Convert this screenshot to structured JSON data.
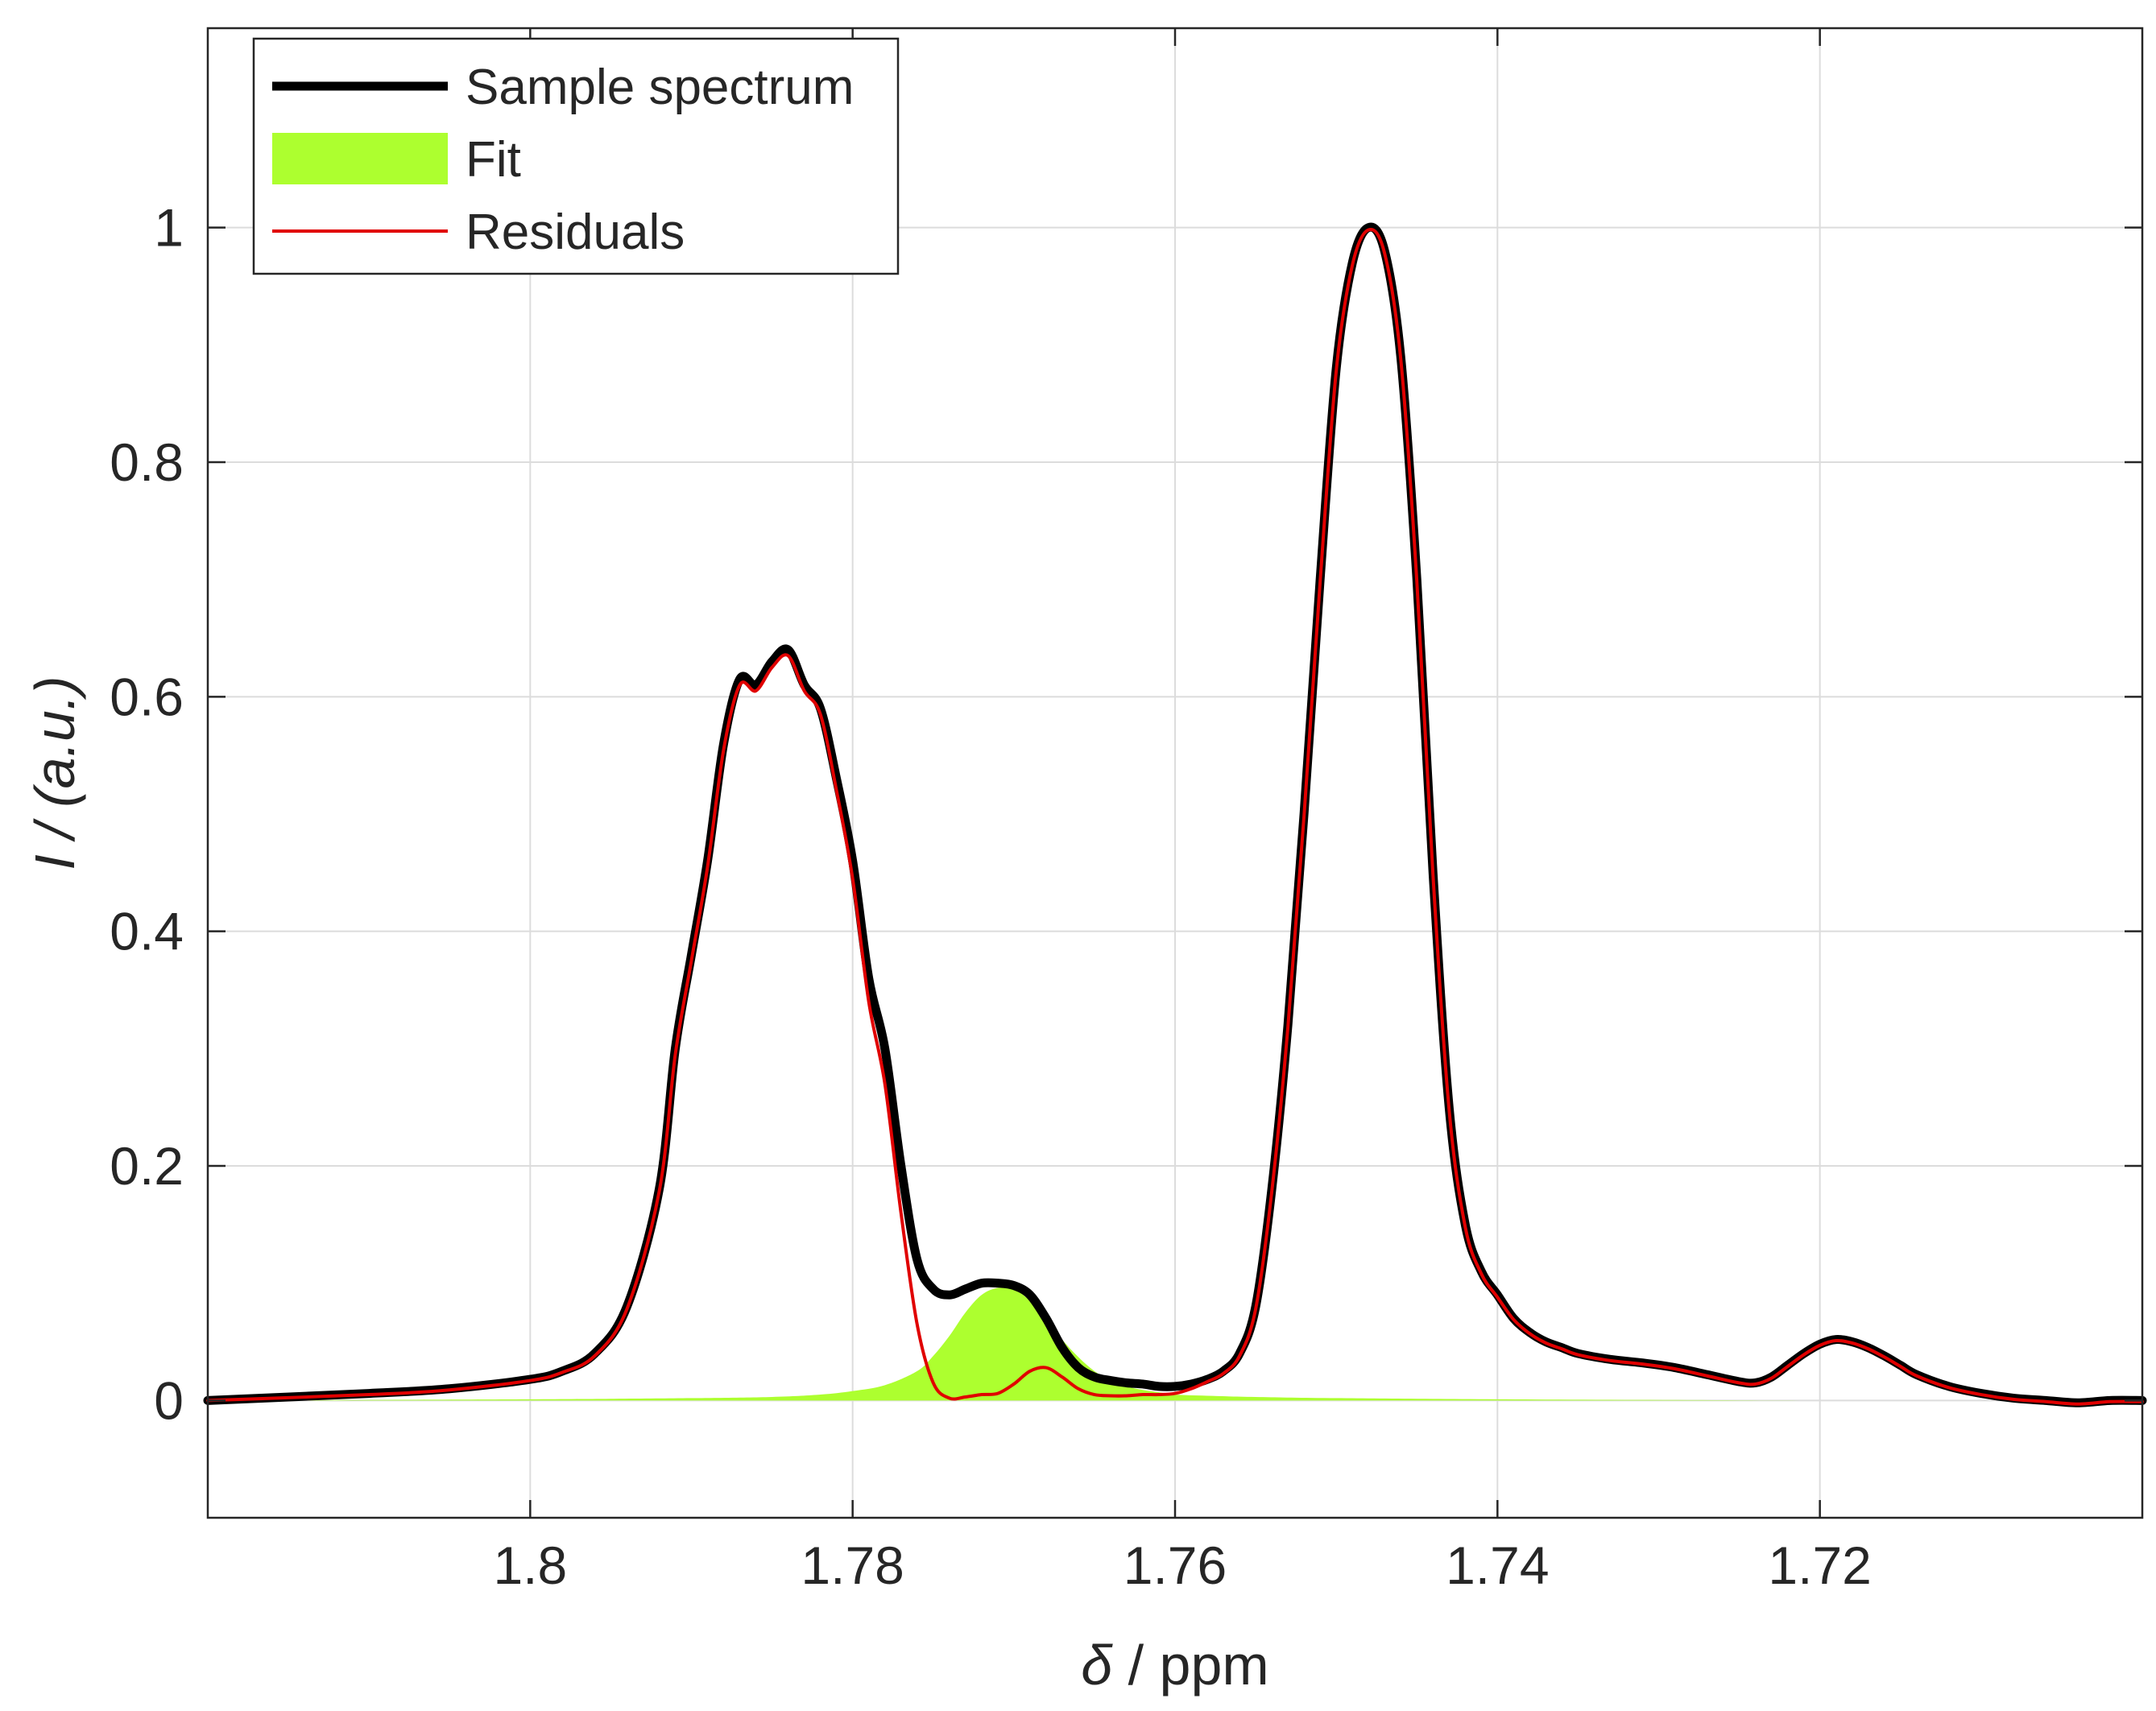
{
  "chart_data": {
    "type": "line",
    "xlabel": {
      "symbol": "δ",
      "rest": " / ppm"
    },
    "ylabel": {
      "symbol": "I",
      "rest": " / (a.u.)"
    },
    "x_reversed": true,
    "xlim": [
      1.82,
      1.7
    ],
    "ylim": [
      -0.1,
      1.17
    ],
    "x_ticks": [
      1.8,
      1.78,
      1.76,
      1.74,
      1.72
    ],
    "x_tick_labels": [
      "1.8",
      "1.78",
      "1.76",
      "1.74",
      "1.72"
    ],
    "y_ticks": [
      0,
      0.2,
      0.4,
      0.6,
      0.8,
      1
    ],
    "y_tick_labels": [
      "0",
      "0.2",
      "0.4",
      "0.6",
      "0.8",
      "1"
    ],
    "grid": true,
    "legend_position": "top-left",
    "colors": {
      "sample": "#000000",
      "fit": "#adff2f",
      "residuals": "#e00000"
    },
    "series": [
      {
        "name": "Sample spectrum",
        "x": [
          1.82,
          1.81,
          1.805,
          1.8,
          1.798,
          1.796,
          1.794,
          1.792,
          1.791,
          1.79,
          1.789,
          1.788,
          1.787,
          1.786,
          1.785,
          1.784,
          1.783,
          1.782,
          1.781,
          1.78,
          1.779,
          1.778,
          1.777,
          1.776,
          1.775,
          1.774,
          1.773,
          1.772,
          1.771,
          1.77,
          1.769,
          1.768,
          1.767,
          1.766,
          1.765,
          1.764,
          1.763,
          1.762,
          1.761,
          1.76,
          1.759,
          1.758,
          1.757,
          1.756,
          1.755,
          1.754,
          1.753,
          1.752,
          1.751,
          1.75,
          1.749,
          1.748,
          1.747,
          1.746,
          1.745,
          1.744,
          1.743,
          1.742,
          1.741,
          1.74,
          1.739,
          1.738,
          1.737,
          1.736,
          1.735,
          1.733,
          1.731,
          1.729,
          1.727,
          1.725,
          1.724,
          1.723,
          1.722,
          1.721,
          1.72,
          1.719,
          1.718,
          1.717,
          1.716,
          1.715,
          1.714,
          1.712,
          1.71,
          1.708,
          1.706,
          1.704,
          1.702,
          1.7
        ],
        "values": [
          0.0,
          0.006,
          0.01,
          0.018,
          0.025,
          0.04,
          0.08,
          0.18,
          0.3,
          0.38,
          0.46,
          0.56,
          0.615,
          0.61,
          0.63,
          0.64,
          0.61,
          0.59,
          0.53,
          0.46,
          0.36,
          0.3,
          0.2,
          0.12,
          0.095,
          0.09,
          0.095,
          0.1,
          0.1,
          0.098,
          0.09,
          0.07,
          0.045,
          0.028,
          0.02,
          0.017,
          0.015,
          0.014,
          0.012,
          0.012,
          0.014,
          0.018,
          0.025,
          0.04,
          0.08,
          0.18,
          0.32,
          0.5,
          0.7,
          0.88,
          0.97,
          1.0,
          0.98,
          0.89,
          0.7,
          0.45,
          0.25,
          0.15,
          0.11,
          0.09,
          0.07,
          0.058,
          0.05,
          0.045,
          0.04,
          0.035,
          0.032,
          0.028,
          0.022,
          0.016,
          0.015,
          0.02,
          0.03,
          0.04,
          0.048,
          0.052,
          0.05,
          0.045,
          0.038,
          0.03,
          0.022,
          0.012,
          0.006,
          0.002,
          0.0,
          -0.002,
          0.0,
          0.0
        ]
      },
      {
        "name": "Fit",
        "x": [
          1.82,
          1.8,
          1.79,
          1.785,
          1.782,
          1.78,
          1.778,
          1.776,
          1.775,
          1.774,
          1.773,
          1.772,
          1.771,
          1.77,
          1.769,
          1.768,
          1.767,
          1.766,
          1.765,
          1.764,
          1.763,
          1.762,
          1.761,
          1.76,
          1.758,
          1.755,
          1.75,
          1.74,
          1.72,
          1.7
        ],
        "values": [
          0.0,
          0.001,
          0.002,
          0.003,
          0.005,
          0.008,
          0.013,
          0.025,
          0.038,
          0.055,
          0.075,
          0.09,
          0.096,
          0.095,
          0.085,
          0.07,
          0.052,
          0.037,
          0.025,
          0.017,
          0.012,
          0.009,
          0.007,
          0.005,
          0.004,
          0.003,
          0.002,
          0.001,
          0.0,
          0.0
        ]
      },
      {
        "name": "Residuals",
        "x": [
          1.82,
          1.81,
          1.805,
          1.8,
          1.798,
          1.796,
          1.794,
          1.792,
          1.791,
          1.79,
          1.789,
          1.788,
          1.787,
          1.786,
          1.785,
          1.784,
          1.783,
          1.782,
          1.781,
          1.78,
          1.779,
          1.778,
          1.777,
          1.776,
          1.775,
          1.774,
          1.773,
          1.772,
          1.771,
          1.77,
          1.769,
          1.768,
          1.767,
          1.766,
          1.765,
          1.764,
          1.763,
          1.762,
          1.761,
          1.76,
          1.759,
          1.758,
          1.757,
          1.756,
          1.755,
          1.754,
          1.753,
          1.752,
          1.751,
          1.75,
          1.749,
          1.748,
          1.747,
          1.746,
          1.745,
          1.744,
          1.743,
          1.742,
          1.741,
          1.74,
          1.739,
          1.738,
          1.737,
          1.736,
          1.735,
          1.733,
          1.731,
          1.729,
          1.727,
          1.725,
          1.724,
          1.723,
          1.722,
          1.721,
          1.72,
          1.719,
          1.718,
          1.717,
          1.716,
          1.715,
          1.714,
          1.712,
          1.71,
          1.708,
          1.706,
          1.704,
          1.702,
          1.7
        ],
        "values": [
          0.0,
          0.005,
          0.009,
          0.017,
          0.024,
          0.038,
          0.078,
          0.178,
          0.295,
          0.375,
          0.455,
          0.555,
          0.61,
          0.605,
          0.625,
          0.635,
          0.605,
          0.585,
          0.52,
          0.445,
          0.34,
          0.27,
          0.16,
          0.065,
          0.015,
          0.002,
          0.003,
          0.005,
          0.006,
          0.014,
          0.025,
          0.028,
          0.02,
          0.01,
          0.005,
          0.004,
          0.004,
          0.005,
          0.005,
          0.006,
          0.01,
          0.016,
          0.023,
          0.038,
          0.078,
          0.178,
          0.318,
          0.498,
          0.698,
          0.878,
          0.968,
          0.998,
          0.978,
          0.888,
          0.698,
          0.448,
          0.248,
          0.148,
          0.108,
          0.088,
          0.069,
          0.057,
          0.049,
          0.044,
          0.039,
          0.034,
          0.031,
          0.027,
          0.021,
          0.015,
          0.014,
          0.019,
          0.029,
          0.039,
          0.047,
          0.051,
          0.049,
          0.044,
          0.037,
          0.029,
          0.021,
          0.011,
          0.005,
          0.001,
          -0.001,
          -0.003,
          -0.001,
          -0.001
        ]
      }
    ]
  }
}
